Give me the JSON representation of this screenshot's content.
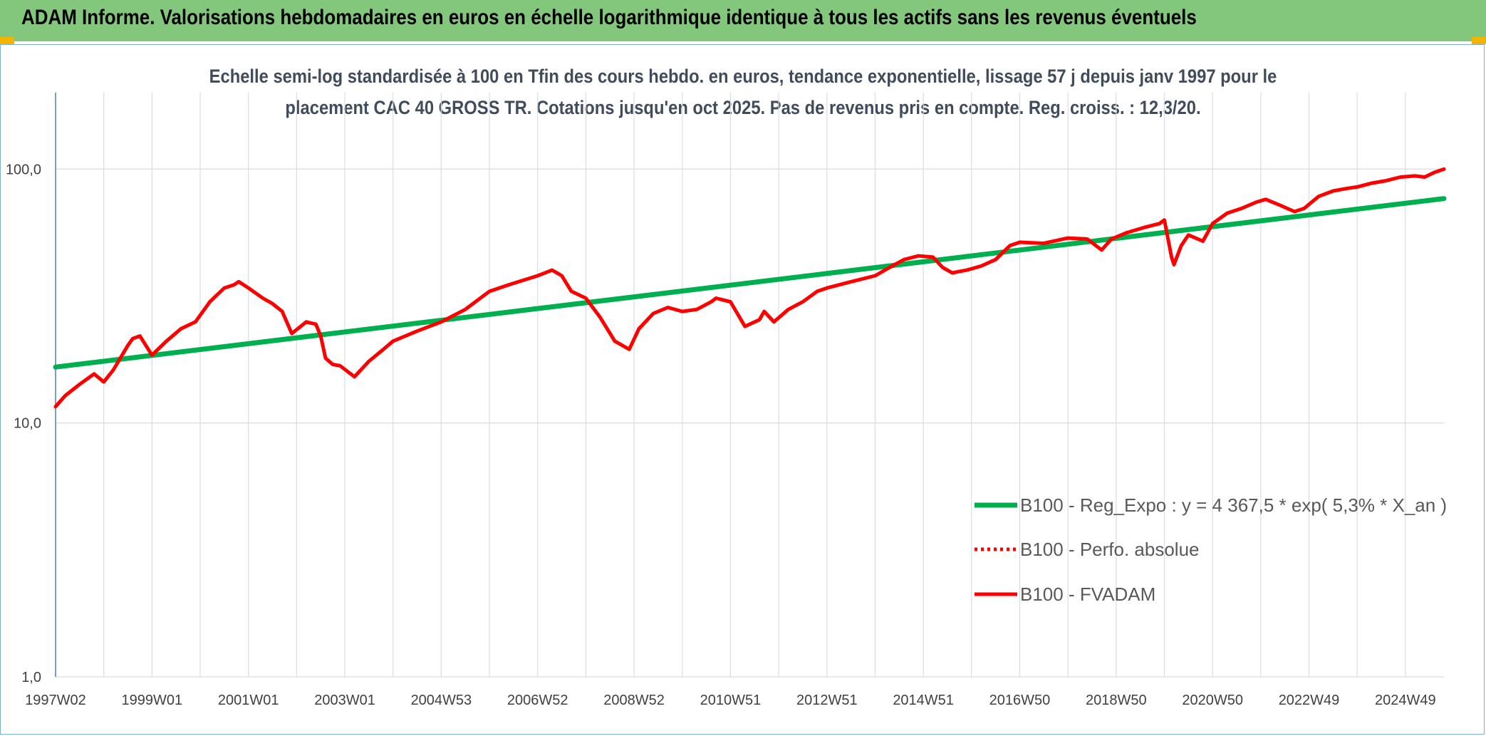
{
  "header": {
    "title": "ADAM Informe. Valorisations hebdomadaires en euros en échelle logarithmique identique à tous les actifs sans les revenus éventuels"
  },
  "chart_data": {
    "type": "line",
    "title_lines": [
      "Echelle semi-log standardisée à 100 en Tfin des cours hebdo. en euros, tendance exponentielle, lissage 57 j depuis janv 1997 pour le",
      "placement CAC 40 GROSS TR. Cotations jusqu'en oct 2025. Pas de revenus pris en compte. Reg. croiss. : 12,3/20."
    ],
    "y_scale": "log",
    "ylim": [
      1,
      200
    ],
    "y_ticks": [
      1,
      10,
      100
    ],
    "y_tick_labels": [
      "1,0",
      "10,0",
      "100,0"
    ],
    "xlim": [
      1997.0,
      2025.8
    ],
    "x_ticks": [
      {
        "x": 1997.0,
        "label": "1997W02"
      },
      {
        "x": 1999.0,
        "label": "1999W01"
      },
      {
        "x": 2001.0,
        "label": "2001W01"
      },
      {
        "x": 2003.0,
        "label": "2003W01"
      },
      {
        "x": 2005.0,
        "label": "2004W53"
      },
      {
        "x": 2007.0,
        "label": "2006W52"
      },
      {
        "x": 2009.0,
        "label": "2008W52"
      },
      {
        "x": 2011.0,
        "label": "2010W51"
      },
      {
        "x": 2013.0,
        "label": "2012W51"
      },
      {
        "x": 2015.0,
        "label": "2014W51"
      },
      {
        "x": 2017.0,
        "label": "2016W50"
      },
      {
        "x": 2019.0,
        "label": "2018W50"
      },
      {
        "x": 2021.0,
        "label": "2020W50"
      },
      {
        "x": 2023.0,
        "label": "2022W49"
      },
      {
        "x": 2025.0,
        "label": "2024W49"
      }
    ],
    "grid": "vertical and horizontal",
    "legend_position": "bottom-right",
    "series": [
      {
        "name": "B100 - Reg_Expo : y = 4 367,5 * exp( 5,3% *  X_an )",
        "color": "#00b050",
        "style": "solid",
        "x": [
          1997.0,
          2025.8
        ],
        "y": [
          16.6,
          76.5
        ]
      },
      {
        "name": "B100 - Perfo. absolue",
        "color": "#ff0000",
        "style": "dotted",
        "x": [],
        "y": []
      },
      {
        "name": "B100 - FVADAM",
        "color": "#ff0000",
        "style": "solid",
        "x": [
          1997.0,
          1997.2,
          1997.5,
          1997.8,
          1998.0,
          1998.2,
          1998.5,
          1998.6,
          1998.75,
          1999.0,
          1999.3,
          1999.6,
          1999.9,
          2000.2,
          2000.5,
          2000.7,
          2000.8,
          2001.0,
          2001.3,
          2001.5,
          2001.7,
          2001.9,
          2002.2,
          2002.4,
          2002.5,
          2002.6,
          2002.75,
          2002.9,
          2003.2,
          2003.5,
          2003.8,
          2004.0,
          2004.5,
          2005.0,
          2005.5,
          2006.0,
          2006.4,
          2006.8,
          2007.0,
          2007.3,
          2007.5,
          2007.7,
          2008.0,
          2008.3,
          2008.6,
          2008.9,
          2009.1,
          2009.4,
          2009.7,
          2010.0,
          2010.3,
          2010.6,
          2010.7,
          2011.0,
          2011.3,
          2011.6,
          2011.7,
          2011.9,
          2012.2,
          2012.5,
          2012.8,
          2013.0,
          2013.5,
          2014.0,
          2014.3,
          2014.6,
          2014.9,
          2015.2,
          2015.4,
          2015.6,
          2015.9,
          2016.2,
          2016.5,
          2016.8,
          2017.0,
          2017.5,
          2018.0,
          2018.4,
          2018.7,
          2018.9,
          2019.2,
          2019.6,
          2019.9,
          2020.0,
          2020.15,
          2020.2,
          2020.35,
          2020.5,
          2020.8,
          2021.0,
          2021.3,
          2021.6,
          2021.9,
          2022.1,
          2022.4,
          2022.7,
          2022.9,
          2023.2,
          2023.5,
          2023.8,
          2024.0,
          2024.3,
          2024.6,
          2024.9,
          2025.2,
          2025.4,
          2025.6,
          2025.8
        ],
        "y": [
          11.6,
          12.8,
          14.2,
          15.6,
          14.5,
          16.2,
          20.2,
          21.5,
          22.0,
          18.5,
          21.0,
          23.5,
          25.0,
          30.0,
          34.0,
          35.0,
          36.0,
          34.0,
          31.0,
          29.5,
          27.5,
          22.5,
          25.0,
          24.5,
          22.0,
          18.0,
          17.0,
          16.8,
          15.2,
          17.5,
          19.5,
          21.0,
          23.0,
          25.0,
          28.0,
          33.0,
          35.0,
          37.0,
          38.0,
          40.0,
          38.0,
          33.0,
          31.0,
          26.0,
          21.0,
          19.5,
          23.5,
          27.0,
          28.5,
          27.5,
          28.0,
          30.0,
          31.0,
          30.0,
          24.0,
          25.5,
          27.5,
          25.0,
          28.0,
          30.0,
          33.0,
          34.0,
          36.0,
          38.0,
          41.0,
          44.0,
          45.5,
          45.0,
          41.0,
          39.0,
          40.0,
          41.5,
          44.0,
          50.0,
          51.5,
          51.0,
          53.5,
          53.0,
          48.0,
          53.0,
          56.0,
          59.0,
          61.0,
          63.0,
          45.0,
          42.0,
          50.0,
          55.0,
          52.0,
          61.0,
          67.0,
          70.0,
          74.0,
          76.0,
          72.0,
          68.0,
          70.0,
          78.0,
          82.0,
          84.0,
          85.0,
          88.0,
          90.0,
          93.0,
          94.0,
          93.0,
          97.0,
          100.0
        ]
      }
    ]
  }
}
